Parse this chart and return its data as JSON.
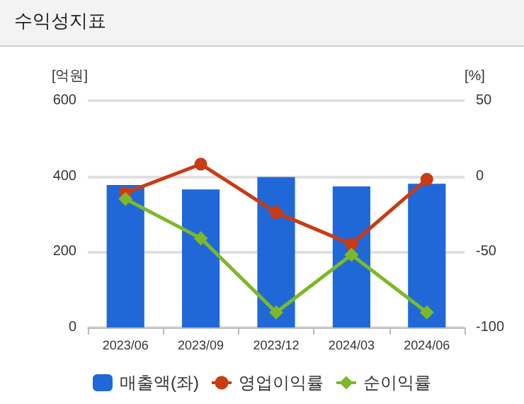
{
  "chart_data": {
    "type": "bar",
    "title": "수익성지표",
    "ylabel": "[억원]",
    "y2label": "[%]",
    "categories": [
      "2023/06",
      "2023/09",
      "2023/12",
      "2024/03",
      "2024/06"
    ],
    "series": [
      {
        "name": "매출액(좌)",
        "color": "#2068d8",
        "values": [
          377,
          365,
          398,
          373,
          380
        ]
      },
      {
        "name": "영업이익률",
        "type": "line",
        "axis": "y2",
        "marker": "circle",
        "color": "#c83c14",
        "values": [
          -11,
          8,
          -24,
          -45,
          -2
        ]
      },
      {
        "name": "순이익률",
        "type": "line",
        "axis": "y2",
        "marker": "diamond",
        "color": "#7cb82a",
        "values": [
          -15,
          -41,
          -90,
          -52,
          -90
        ]
      }
    ],
    "ylim": [
      0,
      600
    ],
    "yticks": [
      0,
      200,
      400,
      600
    ],
    "y2lim": [
      -100,
      50
    ],
    "y2ticks": [
      -100,
      -50,
      0,
      50
    ],
    "grid": "y",
    "legend": "bottom"
  }
}
